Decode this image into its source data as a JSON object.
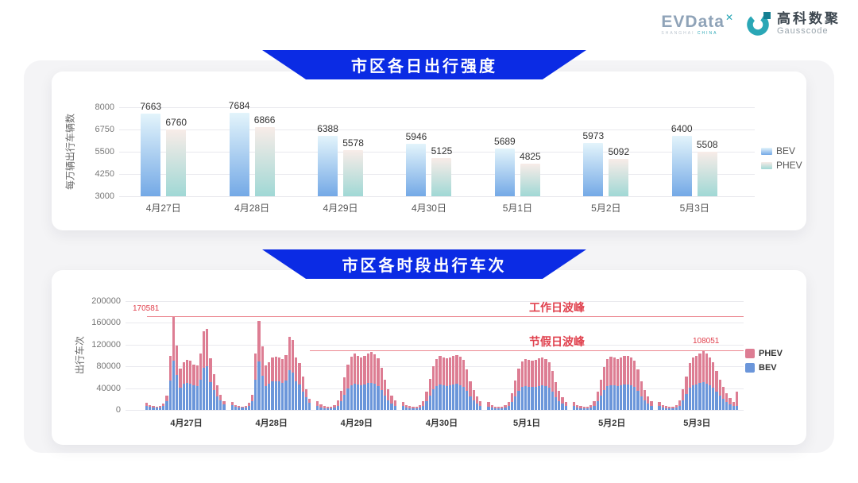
{
  "header": {
    "evdata": {
      "name": "EVData",
      "mark": "✕",
      "sub_left": "SHANGHAI",
      "sub_right": "CHINA"
    },
    "gausscode": {
      "cn": "高科数聚",
      "en": "Gausscode"
    }
  },
  "colors": {
    "banner_blue": "#0b2be4",
    "bev_blue": "#6b96da",
    "phev_pink": "#dd7d93",
    "annotation_red": "#e0404d",
    "peak_line_red": "#ec8a93",
    "bev_gradient_top": "#e3f4fb",
    "bev_gradient_bottom": "#74a9e6",
    "phev_gradient_top": "#f8ece8",
    "phev_gradient_bottom": "#a0d8d5",
    "evdata_gray": "#8fa3b8",
    "teal": "#2aa7b6"
  },
  "chart_data": [
    {
      "id": "daily-intensity",
      "type": "bar",
      "title": "市区各日出行强度",
      "ylabel": "每万辆出行车辆数",
      "ylim": [
        3000,
        8000
      ],
      "yticks": [
        8000,
        6750,
        5500,
        4250,
        3000
      ],
      "grid": true,
      "legend_position": "right",
      "categories": [
        "4月27日",
        "4月28日",
        "4月29日",
        "4月30日",
        "5月1日",
        "5月2日",
        "5月3日"
      ],
      "series": [
        {
          "name": "BEV",
          "values": [
            7663,
            7684,
            6388,
            5946,
            5689,
            5973,
            6400
          ]
        },
        {
          "name": "PHEV",
          "values": [
            6760,
            6866,
            5578,
            5125,
            4825,
            5092,
            5508
          ]
        }
      ],
      "legend": [
        "BEV",
        "PHEV"
      ]
    },
    {
      "id": "hourly-trips",
      "type": "stacked-bar",
      "title": "市区各时段出行车次",
      "ylabel": "出行车次",
      "ylim": [
        0,
        200000
      ],
      "yticks": [
        200000,
        160000,
        120000,
        80000,
        40000,
        0
      ],
      "grid": true,
      "legend_position": "right",
      "legend": [
        "PHEV",
        "BEV"
      ],
      "annotations": {
        "workday_peak": {
          "label": "工作日波峰",
          "value": 170581,
          "value_label": "170581"
        },
        "holiday_peak": {
          "label": "节假日波峰",
          "value": 108051,
          "value_label": "108051"
        }
      },
      "days": [
        {
          "date": "4月27日",
          "bev": [
            8000,
            5600,
            4400,
            3700,
            4400,
            7400,
            15500,
            54000,
            91000,
            64000,
            41000,
            47500,
            50000,
            48500,
            45000,
            44000,
            56000,
            78000,
            80500,
            51500,
            36000,
            25000,
            17000,
            10000
          ],
          "phev": [
            5000,
            3400,
            2600,
            2300,
            2600,
            4600,
            11500,
            46000,
            79581,
            55000,
            35000,
            40500,
            42000,
            41500,
            38000,
            38000,
            48000,
            67000,
            68500,
            43500,
            30000,
            20000,
            11000,
            6000
          ]
        },
        {
          "date": "4月28日",
          "bev": [
            8700,
            5600,
            4400,
            3700,
            4400,
            8000,
            16000,
            56000,
            88500,
            63000,
            44500,
            47500,
            52000,
            53000,
            52500,
            50000,
            54500,
            73000,
            69000,
            52000,
            46500,
            33500,
            23000,
            12500
          ],
          "phev": [
            5300,
            3400,
            2600,
            2300,
            2600,
            5000,
            12000,
            47000,
            75500,
            54000,
            37500,
            40500,
            44000,
            45000,
            44500,
            43000,
            46500,
            62000,
            59000,
            44000,
            39500,
            28500,
            15000,
            7500
          ]
        },
        {
          "date": "4月29日",
          "bev": [
            7500,
            4700,
            3300,
            2800,
            3100,
            4200,
            8000,
            16500,
            28000,
            39000,
            46000,
            48500,
            47000,
            45500,
            46500,
            49000,
            50000,
            48000,
            44500,
            36500,
            26000,
            18000,
            12000,
            8000
          ],
          "phev": [
            8500,
            5300,
            3700,
            3200,
            3400,
            4800,
            9000,
            18500,
            32000,
            44000,
            52000,
            54500,
            53000,
            51500,
            52500,
            55000,
            56500,
            54000,
            50500,
            41500,
            29000,
            20000,
            14000,
            9000
          ]
        },
        {
          "date": "4月30日",
          "bev": [
            7000,
            4500,
            3300,
            2800,
            3100,
            4200,
            7500,
            15500,
            27000,
            37500,
            44000,
            46500,
            45500,
            44500,
            45500,
            47000,
            47500,
            46000,
            43000,
            35000,
            25000,
            17000,
            11500,
            7500
          ],
          "phev": [
            8000,
            5000,
            3700,
            3200,
            3400,
            4800,
            8500,
            17500,
            30000,
            42500,
            50000,
            52500,
            51500,
            50500,
            51500,
            53000,
            53500,
            52000,
            49000,
            40000,
            28000,
            19000,
            13500,
            8500
          ]
        },
        {
          "date": "5月1日",
          "bev": [
            6500,
            4200,
            3000,
            2600,
            2800,
            4000,
            7000,
            14500,
            25500,
            35500,
            42000,
            44000,
            43000,
            42500,
            43000,
            44500,
            45500,
            44000,
            41500,
            34000,
            24000,
            16500,
            11000,
            7000
          ],
          "phev": [
            7500,
            4800,
            3500,
            2900,
            3200,
            4500,
            8000,
            16500,
            28500,
            40500,
            47000,
            50000,
            49000,
            47500,
            49000,
            50500,
            51500,
            50000,
            46500,
            38000,
            27000,
            18500,
            13000,
            8000
          ]
        },
        {
          "date": "5月2日",
          "bev": [
            7000,
            4500,
            3300,
            2800,
            3100,
            4200,
            7500,
            15500,
            26500,
            37000,
            43500,
            46000,
            45000,
            44000,
            45000,
            46500,
            47000,
            45500,
            42500,
            34500,
            24500,
            17000,
            11500,
            7500
          ],
          "phev": [
            8000,
            5000,
            3700,
            3200,
            3400,
            4800,
            8500,
            17500,
            29500,
            42000,
            49500,
            52000,
            51000,
            50000,
            51000,
            52500,
            53000,
            51500,
            48500,
            39500,
            27500,
            19000,
            13500,
            8500
          ]
        },
        {
          "date": "5月3日",
          "bev": [
            7000,
            4200,
            3300,
            2800,
            3100,
            4200,
            8000,
            18000,
            29000,
            40500,
            45000,
            47000,
            49000,
            50551,
            48500,
            45500,
            41000,
            34000,
            26500,
            20000,
            14000,
            10000,
            7000,
            8000
          ],
          "phev": [
            8000,
            4800,
            3700,
            3200,
            3400,
            4800,
            9000,
            20000,
            33000,
            45500,
            51000,
            53000,
            55000,
            57500,
            54500,
            51500,
            46000,
            38000,
            29500,
            22000,
            16000,
            12000,
            8000,
            25000
          ]
        }
      ]
    }
  ]
}
